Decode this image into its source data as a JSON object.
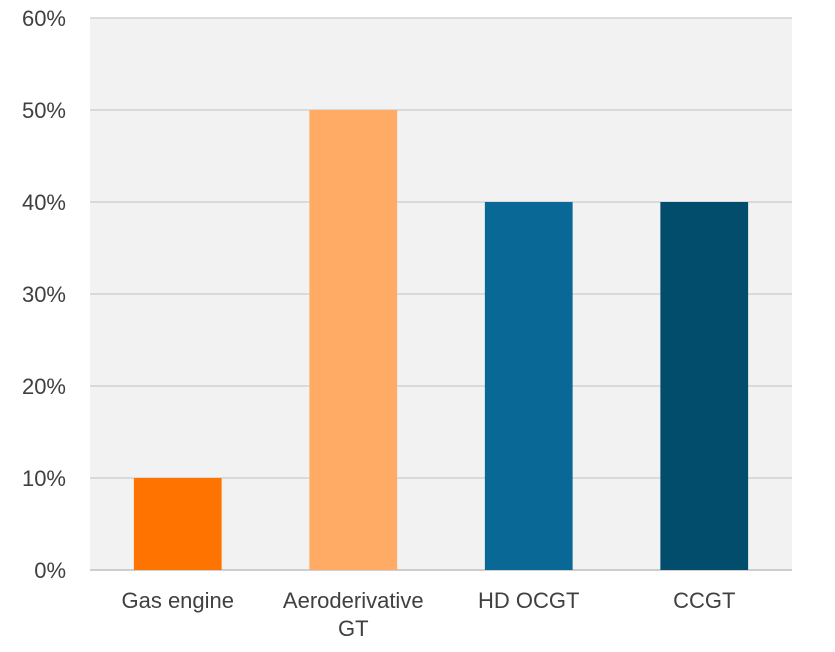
{
  "chart_data": {
    "type": "bar",
    "categories": [
      "Gas engine",
      "Aeroderivative GT",
      "HD OCGT",
      "CCGT"
    ],
    "category_lines": [
      [
        "Gas engine"
      ],
      [
        "Aeroderivative",
        "GT"
      ],
      [
        "HD OCGT"
      ],
      [
        "CCGT"
      ]
    ],
    "values": [
      0.1,
      0.5,
      0.4,
      0.4
    ],
    "bar_colors": [
      "#ff7300",
      "#ffab66",
      "#096895",
      "#024d6c"
    ],
    "ylim": [
      0,
      0.6
    ],
    "yticks": [
      0,
      0.1,
      0.2,
      0.3,
      0.4,
      0.5,
      0.6
    ],
    "ytick_labels": [
      "0%",
      "10%",
      "20%",
      "30%",
      "40%",
      "50%",
      "60%"
    ],
    "grid": true,
    "plot_background": "#f2f2f2",
    "gridline_color": "#cccccc",
    "title": "",
    "xlabel": "",
    "ylabel": ""
  }
}
